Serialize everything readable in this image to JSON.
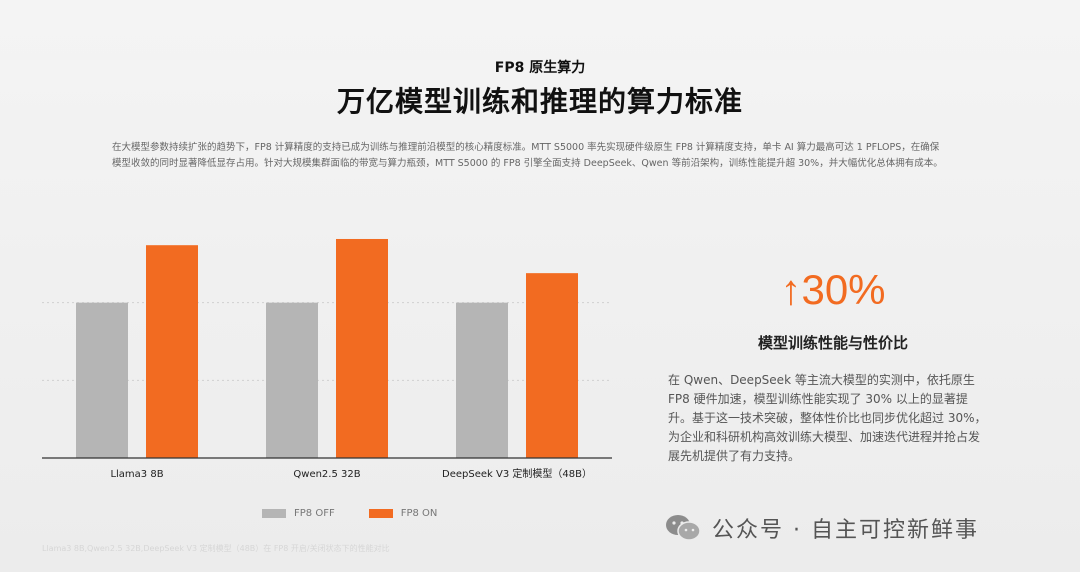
{
  "header": {
    "subtitle": "FP8 原生算力",
    "title": "万亿模型训练和推理的算力标准"
  },
  "intro": {
    "line1": "在大模型参数持续扩张的趋势下，FP8 计算精度的支持已成为训练与推理前沿模型的核心精度标准。MTT S5000 率先实现硬件级原生 FP8 计算精度支持，单卡 AI 算力最高可达 1 PFLOPS，在确保",
    "line2": "模型收敛的同时显著降低显存占用。针对大规模集群面临的带宽与算力瓶颈，MTT S5000 的 FP8 引擎全面支持 DeepSeek、Qwen 等前沿架构，训练性能提升超 30%，并大幅优化总体拥有成本。"
  },
  "chart_data": {
    "type": "bar",
    "categories": [
      "Llama3 8B",
      "Qwen2.5 32B",
      "DeepSeek V3 定制模型（48B）"
    ],
    "series": [
      {
        "name": "FP8 OFF",
        "values": [
          1.0,
          1.0,
          1.0
        ],
        "color": "#b5b5b5"
      },
      {
        "name": "FP8 ON",
        "values": [
          1.37,
          1.41,
          1.19
        ],
        "color": "#f26b21"
      }
    ],
    "ylim": [
      0,
      1.5
    ],
    "grid": [
      0.5,
      1.0
    ],
    "legend": "bottom",
    "footnote": "Llama3 8B,Qwen2.5 32B,DeepSeek V3 定制模型（48B）在 FP8 开启/关闭状态下的性能对比"
  },
  "stat": {
    "arrow": "↑",
    "value": "30%",
    "label": "模型训练性能与性价比",
    "desc_lines": [
      "在 Qwen、DeepSeek 等主流大模型的实测中，依托原生",
      "FP8 硬件加速，模型训练性能实现了 30% 以上的显著提",
      "升。基于这一技术突破，整体性价比也同步优化超过 30%，",
      "为企业和科研机构高效训练大模型、加速迭代进程并抢占发",
      "展先机提供了有力支持。"
    ]
  },
  "watermark": {
    "text": "公众号 · 自主可控新鲜事",
    "icon": "wechat-icon"
  }
}
